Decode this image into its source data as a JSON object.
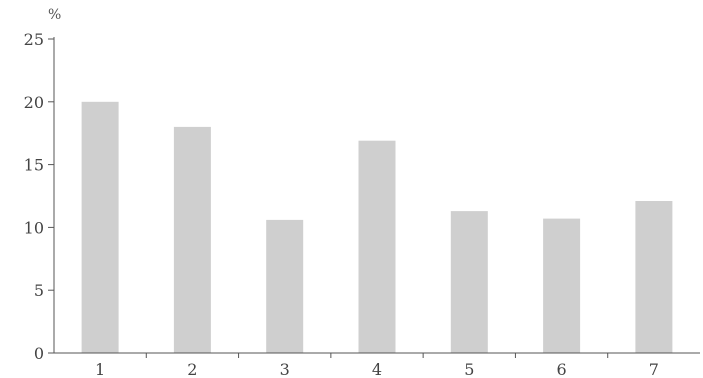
{
  "chart_data": {
    "type": "bar",
    "title": "",
    "xlabel": "",
    "ylabel": "%",
    "categories": [
      "1",
      "2",
      "3",
      "4",
      "5",
      "6",
      "7"
    ],
    "values": [
      20.0,
      18.0,
      10.6,
      16.9,
      11.3,
      10.7,
      12.1
    ],
    "ylim": [
      0,
      25
    ],
    "yticks": [
      "0",
      "5",
      "10",
      "15",
      "20",
      "25"
    ],
    "grid": false,
    "legend": "none",
    "bar_color": "#cfcfcf",
    "axis_color": "#555555"
  }
}
